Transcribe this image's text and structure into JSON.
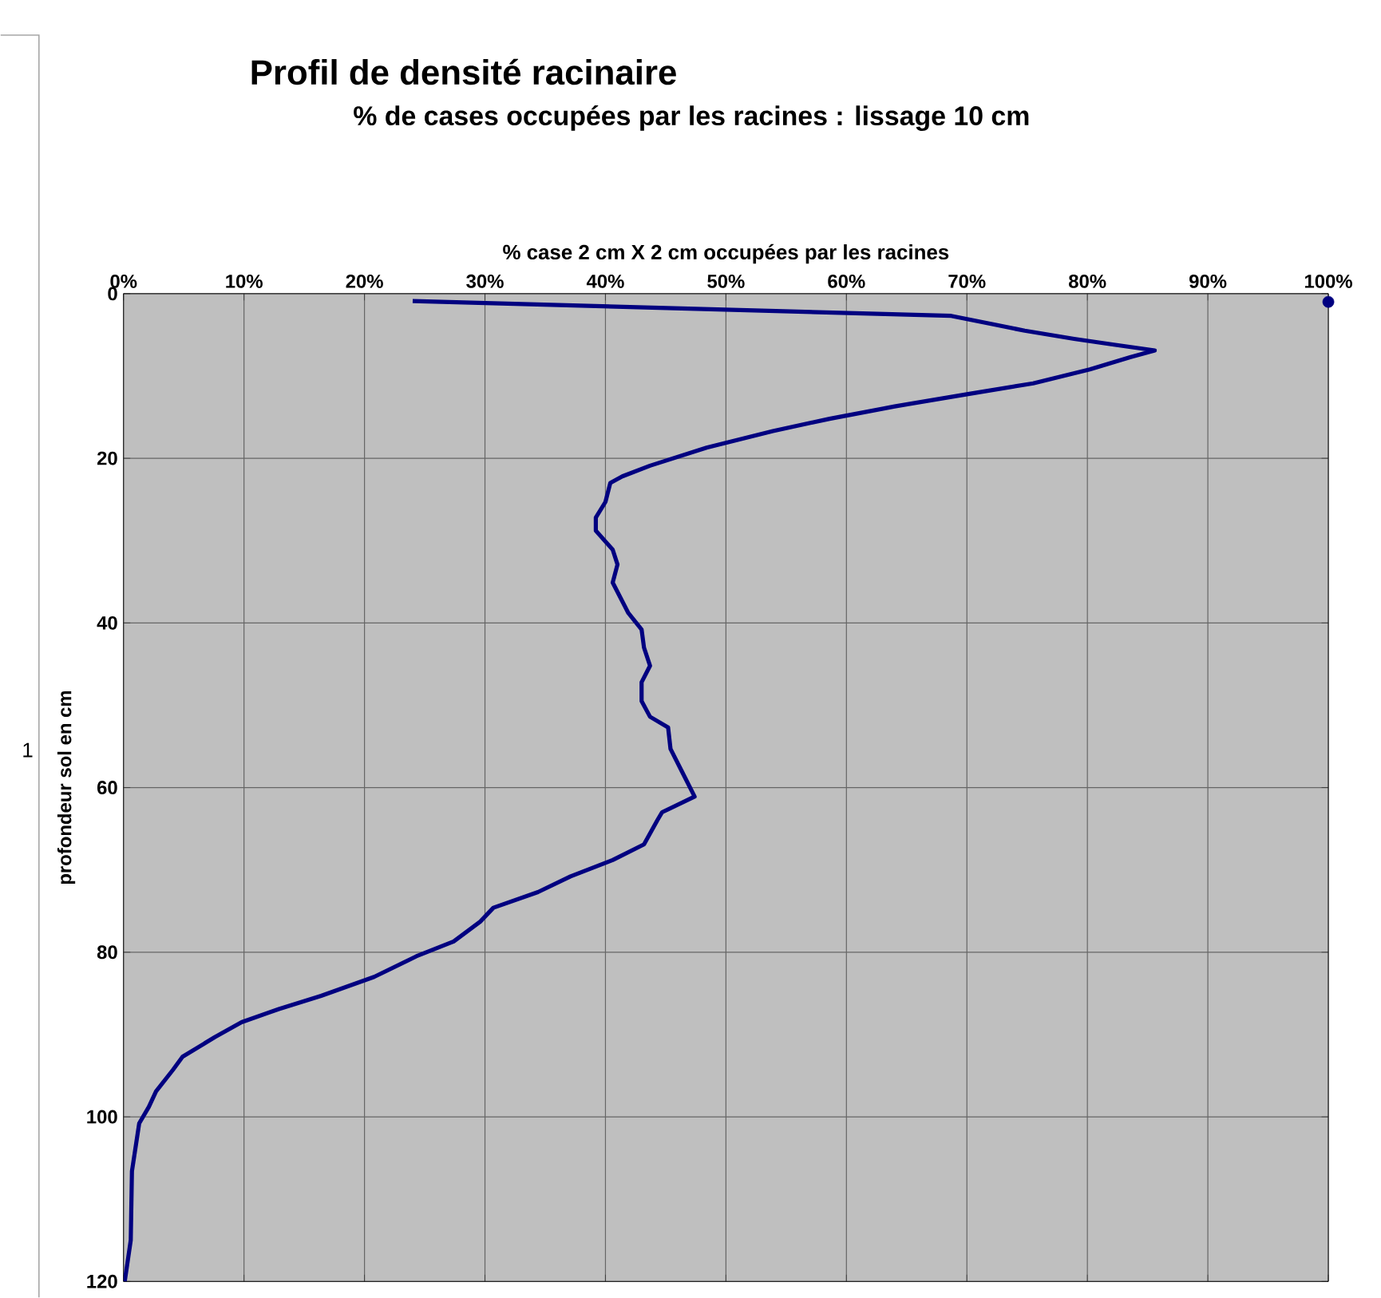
{
  "chart_data": {
    "type": "line",
    "title": "Profil de densité racinaire",
    "subtitle": "% de cases occupées par les racines : lissage 10 cm",
    "xlabel": "% case 2 cm X 2 cm occupées par les racines",
    "ylabel": "profondeur sol en cm",
    "annotations": [
      "1"
    ],
    "xlim": [
      0,
      100
    ],
    "ylim": [
      120,
      0
    ],
    "xticks": [
      {
        "value": 0,
        "label": "0%"
      },
      {
        "value": 10,
        "label": "10%"
      },
      {
        "value": 20,
        "label": "20%"
      },
      {
        "value": 30,
        "label": "30%"
      },
      {
        "value": 40,
        "label": "40%"
      },
      {
        "value": 50,
        "label": "50%"
      },
      {
        "value": 60,
        "label": "60%"
      },
      {
        "value": 70,
        "label": "70%"
      },
      {
        "value": 80,
        "label": "80%"
      },
      {
        "value": 90,
        "label": "90%"
      },
      {
        "value": 100,
        "label": "100%"
      }
    ],
    "yticks": [
      0,
      20,
      40,
      60,
      80,
      100,
      120
    ],
    "grid": true,
    "series": [
      {
        "color": "#000080",
        "x": [
          24.0,
          68.7,
          72.1,
          74.8,
          78.9,
          82.2,
          85.6,
          83.6,
          80.2,
          75.5,
          70.1,
          64.0,
          58.6,
          53.9,
          48.4,
          43.7,
          41.4,
          40.4,
          40.0,
          39.2,
          39.2,
          40.6,
          41.0,
          40.6,
          41.9,
          43.0,
          43.2,
          43.7,
          43.0,
          43.0,
          43.7,
          45.2,
          45.4,
          46.4,
          47.4,
          44.7,
          44.3,
          43.2,
          40.6,
          37.1,
          34.4,
          30.7,
          29.6,
          27.4,
          24.3,
          20.8,
          16.4,
          12.9,
          9.8,
          7.6,
          4.9,
          4.1,
          2.7,
          2.1,
          1.3,
          0.7,
          0.6,
          0.1
        ],
        "values": [
          0.9,
          2.7,
          3.7,
          4.5,
          5.5,
          6.2,
          6.9,
          7.7,
          9.2,
          10.9,
          12.2,
          13.7,
          15.2,
          16.7,
          18.7,
          20.9,
          22.2,
          23.0,
          25.3,
          27.2,
          28.8,
          31.1,
          32.9,
          35.1,
          38.8,
          40.8,
          43.0,
          45.2,
          47.2,
          49.5,
          51.4,
          52.7,
          55.3,
          58.2,
          61.1,
          63.0,
          64.0,
          66.9,
          68.8,
          70.8,
          72.7,
          74.6,
          76.3,
          78.7,
          80.5,
          83.0,
          85.3,
          86.9,
          88.5,
          90.3,
          92.7,
          94.3,
          96.9,
          98.8,
          100.8,
          106.6,
          115.0,
          120.0
        ]
      },
      {
        "type": "scatter",
        "color": "#000080",
        "x": [
          100
        ],
        "values": [
          1
        ]
      }
    ]
  }
}
